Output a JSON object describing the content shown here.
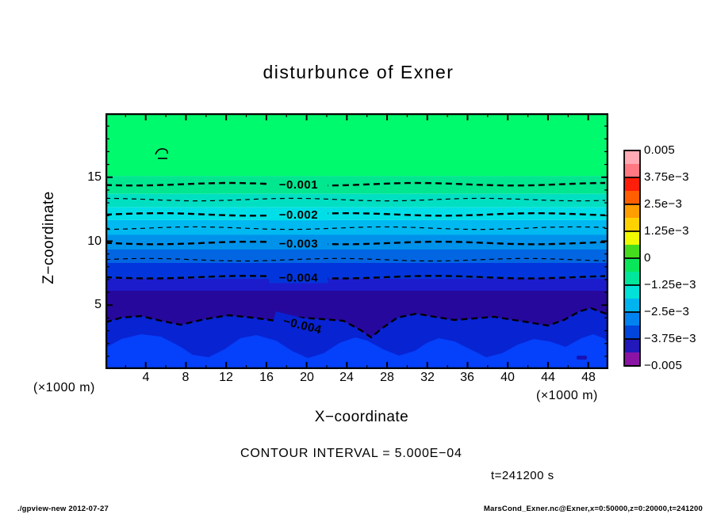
{
  "title": "disturbunce of Exner",
  "plot": {
    "x_axis": {
      "name": "X−coordinate",
      "unit": "(×1000 m)",
      "range": [
        0,
        50
      ],
      "ticks": [
        4,
        8,
        12,
        16,
        20,
        24,
        28,
        32,
        36,
        40,
        44,
        48
      ],
      "minor_step": 2
    },
    "y_axis": {
      "name": "Z−coordinate",
      "unit": "(×1000 m)",
      "range": [
        0,
        20
      ],
      "ticks": [
        5,
        10,
        15
      ],
      "minor_step": 1
    }
  },
  "captions": {
    "contour_interval": "CONTOUR INTERVAL = 5.000E−04",
    "time": "t=241200 s"
  },
  "footer": {
    "left": "./gpview-new  2012-07-27",
    "right": "MarsCond_Exner.nc@Exner,x=0:50000,z=0:20000,t=241200"
  },
  "chart_data": {
    "type": "heatmap",
    "subtype": "filled-contour",
    "title": "disturbunce of Exner",
    "xlabel": "X−coordinate (×1000 m)",
    "ylabel": "Z−coordinate (×1000 m)",
    "xlim": [
      0,
      50
    ],
    "ylim": [
      0,
      20
    ],
    "time": "t=241200 s",
    "contour_interval": 0.0005,
    "colorbar": {
      "labels": [
        "0.005",
        "3.75e−3",
        "2.5e−3",
        "1.25e−3",
        "0",
        "−1.25e−3",
        "−2.5e−3",
        "−3.75e−3",
        "−0.005"
      ],
      "values": [
        0.005,
        0.00375,
        0.0025,
        0.00125,
        0,
        -0.00125,
        -0.0025,
        -0.00375,
        -0.005
      ],
      "segment_colors": [
        "#ffaab4",
        "#ff7882",
        "#ff1e0a",
        "#ff5f00",
        "#ff9e00",
        "#ffd200",
        "#f0fa00",
        "#46dc1e",
        "#0ae65a",
        "#00e69b",
        "#00e1d7",
        "#00b4f0",
        "#0082f0",
        "#0046dc",
        "#2318b9",
        "#8c14a5"
      ]
    },
    "bands": [
      {
        "z_top": 20.0,
        "z_bottom": 15.1,
        "color": "#00fa6e",
        "approx_value": -0.0005
      },
      {
        "z_top": 15.1,
        "z_bottom": 13.7,
        "color": "#00e78f",
        "approx_value": -0.001
      },
      {
        "z_top": 13.7,
        "z_bottom": 12.65,
        "color": "#00dfc2",
        "approx_value": -0.0015
      },
      {
        "z_top": 12.65,
        "z_bottom": 11.65,
        "color": "#00dfe8",
        "approx_value": -0.002
      },
      {
        "z_top": 11.65,
        "z_bottom": 10.5,
        "color": "#00b9f0",
        "approx_value": -0.0025
      },
      {
        "z_top": 10.5,
        "z_bottom": 9.35,
        "color": "#0092ea",
        "approx_value": -0.003
      },
      {
        "z_top": 9.35,
        "z_bottom": 8.3,
        "color": "#0266e3",
        "approx_value": -0.0035
      },
      {
        "z_top": 8.3,
        "z_bottom": 7.06,
        "color": "#0236dc",
        "approx_value": -0.004
      },
      {
        "z_top": 7.06,
        "z_bottom": 6.13,
        "color": "#1c1ccc",
        "approx_value": -0.0045
      },
      {
        "z_top": 6.13,
        "z_bottom": 0.0,
        "color": "#26089d",
        "approx_value": -0.0048
      }
    ],
    "bottom_layers": {
      "layer_color": "#0823d2",
      "layer_value": -0.004,
      "bump_color": "#0540fa",
      "bump_value": -0.0035,
      "speck_color": "#1512b8"
    },
    "contour_lines": [
      {
        "value": -0.001,
        "z": 14.45,
        "bold": true,
        "label": "−0.001",
        "label_x": 19.2,
        "halo": "#00e78f"
      },
      {
        "value": -0.0015,
        "z": 13.25,
        "bold": false
      },
      {
        "value": -0.002,
        "z": 12.09,
        "bold": true,
        "label": "−0.002",
        "label_x": 19.2,
        "halo": "#00dfe8"
      },
      {
        "value": -0.0025,
        "z": 11.02,
        "bold": false
      },
      {
        "value": -0.003,
        "z": 9.86,
        "bold": true,
        "label": "−0.003",
        "label_x": 19.2,
        "halo": "#0092ea"
      },
      {
        "value": -0.0035,
        "z": 8.55,
        "bold": false
      },
      {
        "value": -0.004,
        "z": 7.19,
        "bold": true,
        "label": "−0.004",
        "label_x": 19.2,
        "halo": "#0236dc"
      },
      {
        "value": -0.004,
        "z": 3.45,
        "bold": true,
        "wavy": true,
        "label": "−0.004",
        "label_x": 19.6,
        "rot": 14,
        "halo": "#0823d2"
      }
    ],
    "zero_contour": {
      "label": "0",
      "x_km": 5,
      "z_km": 16.9
    }
  }
}
